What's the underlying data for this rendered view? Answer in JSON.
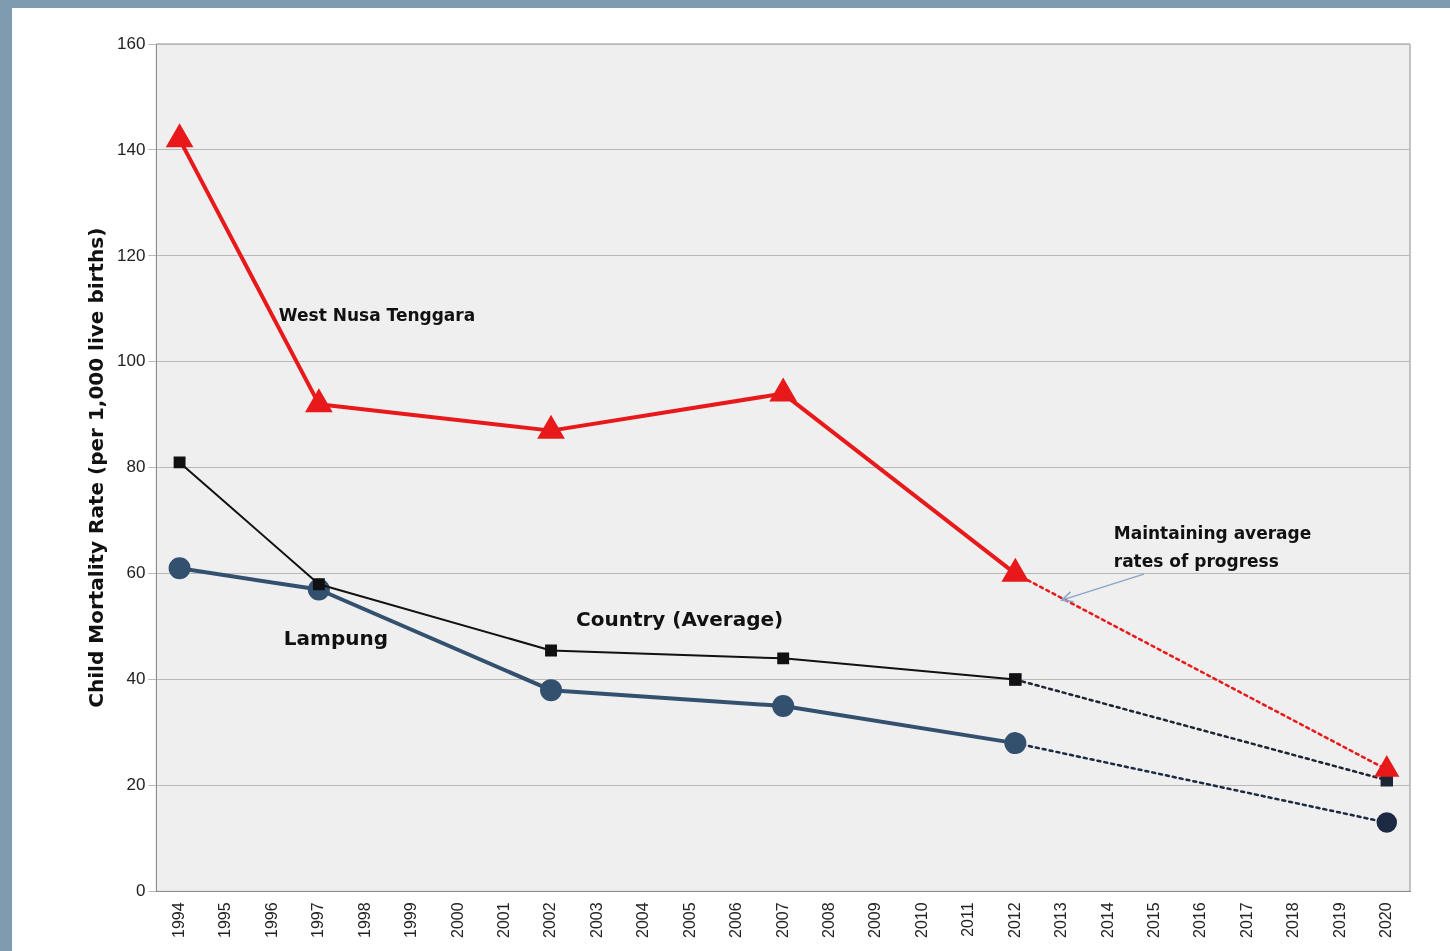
{
  "chart_data": {
    "type": "line",
    "ylabel": "Child Mortality Rate (per 1,000 live births)",
    "categories": [
      "1994",
      "1995",
      "1996",
      "1997",
      "1998",
      "1999",
      "2000",
      "2001",
      "2002",
      "2003",
      "2004",
      "2005",
      "2006",
      "2007",
      "2008",
      "2009",
      "2010",
      "2011",
      "2012",
      "2013",
      "2014",
      "2015",
      "2016",
      "2017",
      "2018",
      "2019",
      "2020"
    ],
    "series": [
      {
        "name": "West Nusa Tenggara",
        "color": "#e8191b",
        "marker": "triangle",
        "line_style": "solid",
        "values": [
          142,
          null,
          null,
          92,
          null,
          null,
          null,
          null,
          87,
          null,
          null,
          null,
          null,
          94,
          null,
          null,
          null,
          null,
          60,
          null,
          null,
          null,
          null,
          null,
          null,
          null,
          null
        ]
      },
      {
        "name": "Country (Average)",
        "color": "#111111",
        "marker": "square",
        "line_style": "solid",
        "values": [
          81,
          null,
          null,
          58,
          null,
          null,
          null,
          null,
          45.5,
          null,
          null,
          null,
          null,
          44,
          null,
          null,
          null,
          null,
          40,
          null,
          null,
          null,
          null,
          null,
          null,
          null,
          null
        ]
      },
      {
        "name": "Lampung",
        "color": "#34506f",
        "marker": "circle",
        "line_style": "solid",
        "values": [
          61,
          null,
          null,
          57,
          null,
          null,
          null,
          null,
          38,
          null,
          null,
          null,
          null,
          35,
          null,
          null,
          null,
          null,
          28,
          null,
          null,
          null,
          null,
          null,
          null,
          null,
          null
        ]
      },
      {
        "color": "#e8191b",
        "marker": "triangle",
        "line_style": "dotted",
        "values": [
          null,
          null,
          null,
          null,
          null,
          null,
          null,
          null,
          null,
          null,
          null,
          null,
          null,
          null,
          null,
          null,
          null,
          null,
          60,
          null,
          null,
          null,
          null,
          null,
          null,
          null,
          23
        ]
      },
      {
        "color": "#1c2533",
        "marker": "square",
        "line_style": "dotted",
        "values": [
          null,
          null,
          null,
          null,
          null,
          null,
          null,
          null,
          null,
          null,
          null,
          null,
          null,
          null,
          null,
          null,
          null,
          null,
          40,
          null,
          null,
          null,
          null,
          null,
          null,
          null,
          21
        ]
      },
      {
        "color": "#1c2a44",
        "marker": "circle",
        "line_style": "dotted",
        "values": [
          null,
          null,
          null,
          null,
          null,
          null,
          null,
          null,
          null,
          null,
          null,
          null,
          null,
          null,
          null,
          null,
          null,
          null,
          28,
          null,
          null,
          null,
          null,
          null,
          null,
          null,
          13
        ]
      }
    ],
    "ylim": [
      0,
      160
    ],
    "yticks": [
      0,
      20,
      40,
      60,
      80,
      100,
      120,
      140,
      160
    ],
    "grid": "y",
    "legend": false,
    "annotations": [
      {
        "text": "Maintaining average rates of progress",
        "x": "2013",
        "y": 55
      }
    ]
  }
}
